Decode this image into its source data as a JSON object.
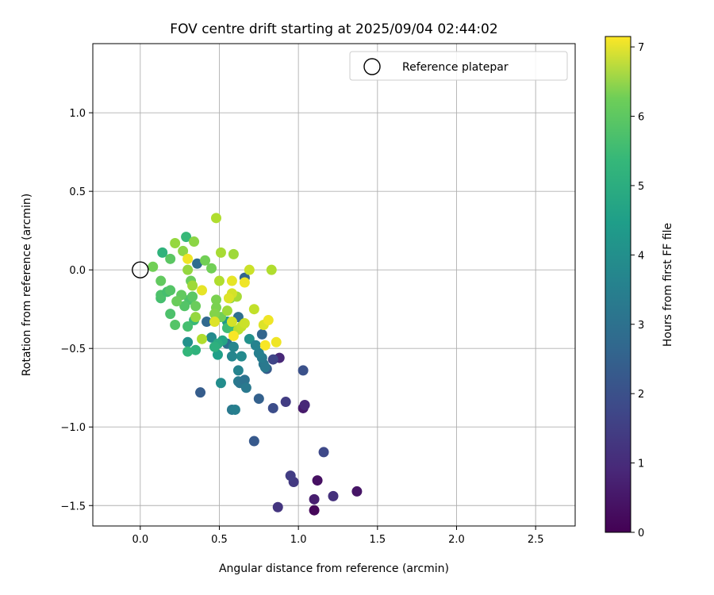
{
  "chart_data": {
    "type": "scatter",
    "title": "FOV centre drift starting at 2025/09/04 02:44:02",
    "xlabel": "Angular distance from reference (arcmin)",
    "ylabel": "Rotation from reference (arcmin)",
    "xlim": [
      -0.3,
      2.75
    ],
    "ylim": [
      -1.63,
      1.44
    ],
    "xticks": [
      0.0,
      0.5,
      1.0,
      1.5,
      2.0,
      2.5
    ],
    "xtick_labels": [
      "0.0",
      "0.5",
      "1.0",
      "1.5",
      "2.0",
      "2.5"
    ],
    "yticks": [
      1.0,
      0.5,
      0.0,
      -0.5,
      -1.0,
      -1.5
    ],
    "ytick_labels": [
      "1.0",
      "0.5",
      "0.0",
      "−0.5",
      "−1.0",
      "−1.5"
    ],
    "grid": true,
    "legend": {
      "position": "upper right",
      "entries": [
        "Reference platepar"
      ]
    },
    "reference_point": {
      "x": 0.0,
      "y": 0.0
    },
    "colorbar": {
      "label": "Hours from first FF file",
      "colormap": "viridis",
      "range": [
        0,
        7.15
      ],
      "ticks": [
        0,
        1,
        2,
        3,
        4,
        5,
        6,
        7
      ],
      "tick_labels": [
        "0",
        "1",
        "2",
        "3",
        "4",
        "5",
        "6",
        "7"
      ]
    },
    "points": [
      {
        "x": 1.1,
        "y": -1.53,
        "c": 0.1
      },
      {
        "x": 1.12,
        "y": -1.34,
        "c": 0.3
      },
      {
        "x": 1.37,
        "y": -1.41,
        "c": 0.4
      },
      {
        "x": 1.1,
        "y": -1.46,
        "c": 0.6
      },
      {
        "x": 1.03,
        "y": -0.88,
        "c": 0.5
      },
      {
        "x": 1.04,
        "y": -0.86,
        "c": 0.8
      },
      {
        "x": 0.88,
        "y": -0.56,
        "c": 0.8
      },
      {
        "x": 1.22,
        "y": -1.44,
        "c": 1.0
      },
      {
        "x": 0.87,
        "y": -1.51,
        "c": 1.1
      },
      {
        "x": 0.97,
        "y": -1.35,
        "c": 1.2
      },
      {
        "x": 0.95,
        "y": -1.31,
        "c": 1.3
      },
      {
        "x": 0.92,
        "y": -0.84,
        "c": 1.3
      },
      {
        "x": 1.16,
        "y": -1.16,
        "c": 1.6
      },
      {
        "x": 0.84,
        "y": -0.88,
        "c": 1.7
      },
      {
        "x": 0.84,
        "y": -0.57,
        "c": 1.5
      },
      {
        "x": 1.03,
        "y": -0.64,
        "c": 1.8
      },
      {
        "x": 0.72,
        "y": -1.09,
        "c": 2.0
      },
      {
        "x": 0.38,
        "y": -0.78,
        "c": 2.1
      },
      {
        "x": 0.75,
        "y": -0.82,
        "c": 2.2
      },
      {
        "x": 0.8,
        "y": -0.63,
        "c": 2.0
      },
      {
        "x": 0.77,
        "y": -0.41,
        "c": 2.3
      },
      {
        "x": 0.66,
        "y": -0.05,
        "c": 2.3
      },
      {
        "x": 0.36,
        "y": 0.04,
        "c": 2.5
      },
      {
        "x": 0.42,
        "y": -0.33,
        "c": 2.4
      },
      {
        "x": 0.62,
        "y": -0.3,
        "c": 2.6
      },
      {
        "x": 0.55,
        "y": -0.47,
        "c": 2.6
      },
      {
        "x": 0.58,
        "y": -0.89,
        "c": 2.9
      },
      {
        "x": 0.6,
        "y": -0.89,
        "c": 3.1
      },
      {
        "x": 0.62,
        "y": -0.71,
        "c": 3.0
      },
      {
        "x": 0.63,
        "y": -0.72,
        "c": 2.8
      },
      {
        "x": 0.66,
        "y": -0.7,
        "c": 2.7
      },
      {
        "x": 0.67,
        "y": -0.75,
        "c": 2.9
      },
      {
        "x": 0.78,
        "y": -0.6,
        "c": 2.8
      },
      {
        "x": 0.79,
        "y": -0.62,
        "c": 2.9
      },
      {
        "x": 0.77,
        "y": -0.56,
        "c": 3.0
      },
      {
        "x": 0.75,
        "y": -0.53,
        "c": 3.1
      },
      {
        "x": 0.62,
        "y": -0.64,
        "c": 3.2
      },
      {
        "x": 0.58,
        "y": -0.55,
        "c": 3.3
      },
      {
        "x": 0.59,
        "y": -0.49,
        "c": 3.3
      },
      {
        "x": 0.64,
        "y": -0.55,
        "c": 3.4
      },
      {
        "x": 0.51,
        "y": -0.72,
        "c": 3.5
      },
      {
        "x": 0.45,
        "y": -0.43,
        "c": 3.4
      },
      {
        "x": 0.3,
        "y": -0.46,
        "c": 3.6
      },
      {
        "x": 0.69,
        "y": -0.44,
        "c": 3.6
      },
      {
        "x": 0.73,
        "y": -0.48,
        "c": 3.2
      },
      {
        "x": 0.55,
        "y": -0.33,
        "c": 3.8
      },
      {
        "x": 0.49,
        "y": -0.54,
        "c": 4.0
      },
      {
        "x": 0.52,
        "y": -0.45,
        "c": 4.2
      },
      {
        "x": 0.49,
        "y": -0.47,
        "c": 4.4
      },
      {
        "x": 0.47,
        "y": -0.49,
        "c": 4.5
      },
      {
        "x": 0.35,
        "y": -0.51,
        "c": 4.6
      },
      {
        "x": 0.3,
        "y": -0.52,
        "c": 4.7
      },
      {
        "x": 0.14,
        "y": 0.11,
        "c": 4.6
      },
      {
        "x": 0.29,
        "y": 0.21,
        "c": 4.8
      },
      {
        "x": 0.55,
        "y": -0.37,
        "c": 4.9
      },
      {
        "x": 0.59,
        "y": -0.39,
        "c": 4.9
      },
      {
        "x": 0.34,
        "y": -0.32,
        "c": 4.8
      },
      {
        "x": 0.13,
        "y": -0.18,
        "c": 5.0
      },
      {
        "x": 0.13,
        "y": -0.16,
        "c": 5.1
      },
      {
        "x": 0.17,
        "y": -0.14,
        "c": 5.0
      },
      {
        "x": 0.19,
        "y": -0.13,
        "c": 5.2
      },
      {
        "x": 0.19,
        "y": -0.28,
        "c": 5.1
      },
      {
        "x": 0.22,
        "y": -0.35,
        "c": 5.2
      },
      {
        "x": 0.3,
        "y": -0.36,
        "c": 5.0
      },
      {
        "x": 0.31,
        "y": -0.19,
        "c": 5.1
      },
      {
        "x": 0.33,
        "y": -0.17,
        "c": 5.3
      },
      {
        "x": 0.26,
        "y": -0.16,
        "c": 5.4
      },
      {
        "x": 0.28,
        "y": -0.23,
        "c": 5.2
      },
      {
        "x": 0.23,
        "y": -0.2,
        "c": 5.5
      },
      {
        "x": 0.19,
        "y": 0.07,
        "c": 5.3
      },
      {
        "x": 0.13,
        "y": -0.07,
        "c": 5.4
      },
      {
        "x": 0.08,
        "y": 0.02,
        "c": 5.6
      },
      {
        "x": 0.32,
        "y": -0.07,
        "c": 5.5
      },
      {
        "x": 0.35,
        "y": -0.23,
        "c": 5.5
      },
      {
        "x": 0.41,
        "y": 0.06,
        "c": 5.6
      },
      {
        "x": 0.45,
        "y": 0.01,
        "c": 5.6
      },
      {
        "x": 0.48,
        "y": -0.19,
        "c": 5.7
      },
      {
        "x": 0.48,
        "y": -0.24,
        "c": 5.7
      },
      {
        "x": 0.51,
        "y": -0.3,
        "c": 5.6
      },
      {
        "x": 0.47,
        "y": -0.28,
        "c": 5.8
      },
      {
        "x": 0.57,
        "y": -0.18,
        "c": 5.8
      },
      {
        "x": 0.34,
        "y": 0.18,
        "c": 5.9
      },
      {
        "x": 0.22,
        "y": 0.17,
        "c": 6.0
      },
      {
        "x": 0.27,
        "y": 0.12,
        "c": 5.9
      },
      {
        "x": 0.3,
        "y": 0.0,
        "c": 6.0
      },
      {
        "x": 0.33,
        "y": -0.1,
        "c": 6.1
      },
      {
        "x": 0.35,
        "y": -0.3,
        "c": 6.0
      },
      {
        "x": 0.39,
        "y": -0.44,
        "c": 6.3
      },
      {
        "x": 0.55,
        "y": -0.26,
        "c": 6.1
      },
      {
        "x": 0.61,
        "y": -0.17,
        "c": 6.2
      },
      {
        "x": 0.51,
        "y": 0.11,
        "c": 6.2
      },
      {
        "x": 0.59,
        "y": 0.1,
        "c": 6.1
      },
      {
        "x": 0.5,
        "y": -0.07,
        "c": 6.3
      },
      {
        "x": 0.48,
        "y": 0.33,
        "c": 6.3
      },
      {
        "x": 0.83,
        "y": 0.0,
        "c": 6.3
      },
      {
        "x": 0.62,
        "y": -0.38,
        "c": 6.4
      },
      {
        "x": 0.64,
        "y": -0.36,
        "c": 6.5
      },
      {
        "x": 0.66,
        "y": -0.34,
        "c": 6.6
      },
      {
        "x": 0.58,
        "y": -0.33,
        "c": 6.7
      },
      {
        "x": 0.58,
        "y": -0.15,
        "c": 6.7
      },
      {
        "x": 0.56,
        "y": -0.18,
        "c": 6.8
      },
      {
        "x": 0.58,
        "y": -0.07,
        "c": 6.9
      },
      {
        "x": 0.66,
        "y": -0.08,
        "c": 7.0
      },
      {
        "x": 0.69,
        "y": 0.0,
        "c": 6.6
      },
      {
        "x": 0.72,
        "y": -0.25,
        "c": 6.5
      },
      {
        "x": 0.78,
        "y": -0.35,
        "c": 6.8
      },
      {
        "x": 0.81,
        "y": -0.32,
        "c": 7.0
      },
      {
        "x": 0.79,
        "y": -0.48,
        "c": 7.1
      },
      {
        "x": 0.86,
        "y": -0.46,
        "c": 7.0
      },
      {
        "x": 0.59,
        "y": -0.42,
        "c": 7.1
      },
      {
        "x": 0.47,
        "y": -0.33,
        "c": 6.8
      },
      {
        "x": 0.39,
        "y": -0.13,
        "c": 6.9
      },
      {
        "x": 0.3,
        "y": 0.07,
        "c": 7.0
      }
    ]
  }
}
